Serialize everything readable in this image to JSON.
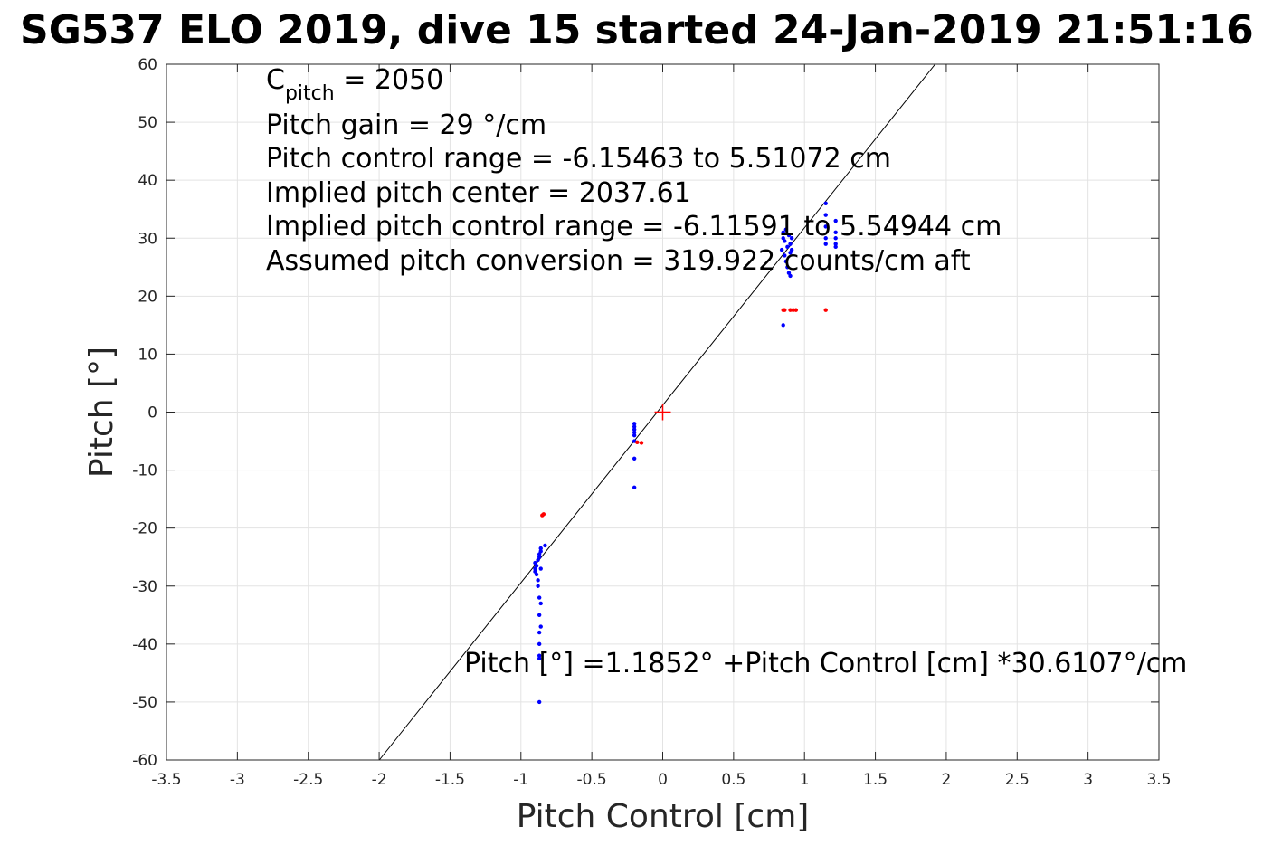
{
  "chart_data": {
    "type": "scatter",
    "title": "SG537 ELO 2019, dive 15 started 24-Jan-2019 21:51:16",
    "xlabel": "Pitch Control [cm]",
    "ylabel": "Pitch [°]",
    "xlim": [
      -3.5,
      3.5
    ],
    "ylim": [
      -60,
      60
    ],
    "xticks": [
      -3.5,
      -3,
      -2.5,
      -2,
      -1.5,
      -1,
      -0.5,
      0,
      0.5,
      1,
      1.5,
      2,
      2.5,
      3,
      3.5
    ],
    "yticks": [
      -60,
      -50,
      -40,
      -30,
      -20,
      -10,
      0,
      10,
      20,
      30,
      40,
      50,
      60
    ],
    "xtick_labels": [
      "-3.5",
      "-3",
      "-2.5",
      "-2",
      "-1.5",
      "-1",
      "-0.5",
      "0",
      "0.5",
      "1",
      "1.5",
      "2",
      "2.5",
      "3",
      "3.5"
    ],
    "ytick_labels": [
      "-60",
      "-50",
      "-40",
      "-30",
      "-20",
      "-10",
      "0",
      "10",
      "20",
      "30",
      "40",
      "50",
      "60"
    ],
    "grid": true,
    "annotations": {
      "c_pitch_symbol": "C",
      "c_pitch_subscript": "pitch",
      "c_pitch_value": " = 2050",
      "lines": [
        "Pitch gain = 29 °/cm",
        "Pitch control range = -6.15463 to 5.51072 cm",
        "Implied pitch center = 2037.61",
        "Implied pitch control range = -6.11591 to 5.54944 cm",
        "Assumed pitch conversion = 319.922 counts/cm aft"
      ],
      "fit_equation": "Pitch [°] =1.1852° +Pitch Control [cm] *30.6107°/cm"
    },
    "fit_line": {
      "intercept": 1.1852,
      "slope": 30.6107,
      "color": "#000000"
    },
    "center_marker": {
      "x": 0,
      "y": 0,
      "color": "#ff0000",
      "symbol": "+"
    },
    "series": [
      {
        "color": "#0000ff",
        "points": [
          [
            -0.9,
            -26
          ],
          [
            -0.9,
            -27
          ],
          [
            -0.9,
            -27.5
          ],
          [
            -0.89,
            -28
          ],
          [
            -0.89,
            -26.5
          ],
          [
            -0.88,
            -25.5
          ],
          [
            -0.88,
            -29
          ],
          [
            -0.88,
            -30
          ],
          [
            -0.87,
            -24.5
          ],
          [
            -0.87,
            -25
          ],
          [
            -0.87,
            -32
          ],
          [
            -0.87,
            -35
          ],
          [
            -0.87,
            -38
          ],
          [
            -0.87,
            -40
          ],
          [
            -0.87,
            -42
          ],
          [
            -0.86,
            -23.5
          ],
          [
            -0.86,
            -24
          ],
          [
            -0.86,
            -27
          ],
          [
            -0.86,
            -33
          ],
          [
            -0.86,
            -37
          ],
          [
            -0.87,
            -42.5
          ],
          [
            -0.87,
            -50
          ],
          [
            -0.83,
            -23
          ],
          [
            -0.2,
            -2
          ],
          [
            -0.2,
            -2.5
          ],
          [
            -0.2,
            -3
          ],
          [
            -0.2,
            -3.5
          ],
          [
            -0.2,
            -4
          ],
          [
            -0.2,
            -5
          ],
          [
            -0.2,
            -8
          ],
          [
            -0.2,
            -13
          ],
          [
            0.84,
            28
          ],
          [
            0.85,
            30
          ],
          [
            0.85,
            31
          ],
          [
            0.86,
            27
          ],
          [
            0.86,
            29.5
          ],
          [
            0.87,
            26
          ],
          [
            0.87,
            31.5
          ],
          [
            0.88,
            25
          ],
          [
            0.88,
            28.5
          ],
          [
            0.89,
            24
          ],
          [
            0.89,
            30.5
          ],
          [
            0.9,
            23.5
          ],
          [
            0.9,
            27.5
          ],
          [
            0.9,
            29
          ],
          [
            0.91,
            28
          ],
          [
            0.91,
            30
          ],
          [
            0.85,
            15
          ],
          [
            1.15,
            36
          ],
          [
            1.15,
            34
          ],
          [
            1.15,
            32
          ],
          [
            1.15,
            30
          ],
          [
            1.15,
            29
          ],
          [
            1.22,
            33
          ],
          [
            1.22,
            31
          ],
          [
            1.22,
            30
          ],
          [
            1.22,
            29
          ],
          [
            1.22,
            28.5
          ]
        ]
      },
      {
        "color": "#ff0000",
        "points": [
          [
            -0.85,
            -17.8
          ],
          [
            -0.84,
            -17.6
          ],
          [
            -0.18,
            -5.2
          ],
          [
            -0.15,
            -5.3
          ],
          [
            0.85,
            17.6
          ],
          [
            0.86,
            17.6
          ],
          [
            0.9,
            17.6
          ],
          [
            0.92,
            17.6
          ],
          [
            0.94,
            17.6
          ],
          [
            1.15,
            17.6
          ]
        ]
      }
    ]
  }
}
